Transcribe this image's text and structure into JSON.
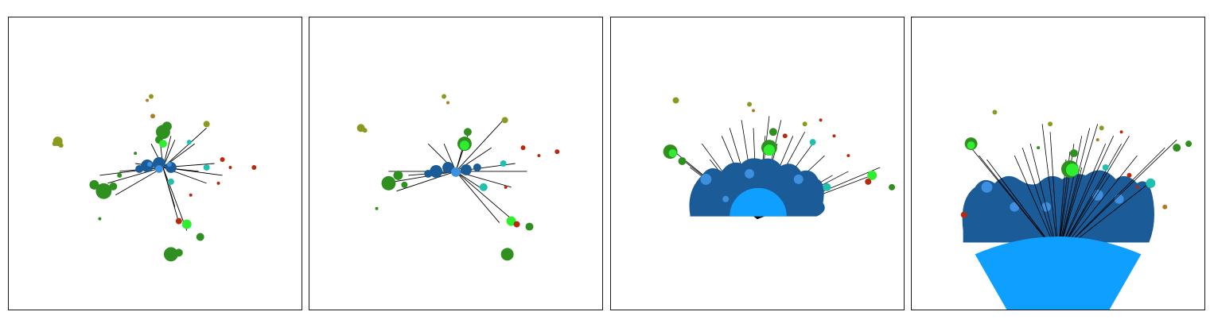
{
  "figure": {
    "panel_count": 4,
    "panels": [
      {
        "id": "panel-1",
        "layout": "radial-spread"
      },
      {
        "id": "panel-2",
        "layout": "radial-spread"
      },
      {
        "id": "panel-3",
        "layout": "half-disc-fan"
      },
      {
        "id": "panel-4",
        "layout": "truncated-fan"
      }
    ],
    "colors": {
      "hub_fill": "#0fa0ff",
      "hub_cluster": "#1a5b98",
      "hub_node": "#3d8fe0",
      "edge": "#000000",
      "cluster_green": "#2f8f1f",
      "cluster_olive": "#8b9a1e",
      "cluster_cyan": "#20c0b0",
      "cluster_red": "#b82a10",
      "cluster_brown": "#b07a20",
      "highlight_green": "#2fee2f",
      "border": "#1a1a1a"
    },
    "icons": []
  }
}
